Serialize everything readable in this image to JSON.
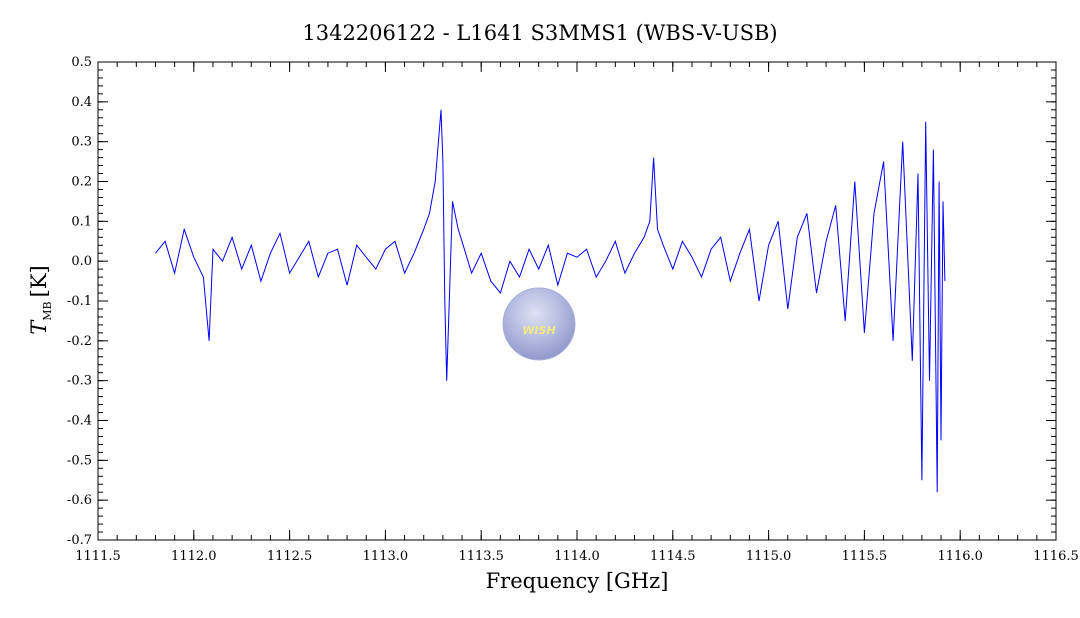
{
  "chart_data": {
    "type": "line",
    "title": "1342206122 - L1641 S3MMS1 (WBS-V-USB)",
    "xlabel": "Frequency [GHz]",
    "ylabel_main": "T",
    "ylabel_sub": "MB",
    "ylabel_unit": "[K]",
    "xlim": [
      1111.5,
      1116.5
    ],
    "ylim": [
      -0.7,
      0.5
    ],
    "x_ticks": [
      1111.5,
      1112.0,
      1112.5,
      1113.0,
      1113.5,
      1114.0,
      1114.5,
      1115.0,
      1115.5,
      1116.0,
      1116.5
    ],
    "x_tick_labels": [
      "1111.5",
      "1112.0",
      "1112.5",
      "1113.0",
      "1113.5",
      "1114.0",
      "1114.5",
      "1115.0",
      "1115.5",
      "1116.0",
      "1116.5"
    ],
    "y_ticks": [
      -0.7,
      -0.6,
      -0.5,
      -0.4,
      -0.3,
      -0.2,
      -0.1,
      0.0,
      0.1,
      0.2,
      0.3,
      0.4,
      0.5
    ],
    "y_tick_labels": [
      "-0.7",
      "-0.6",
      "-0.5",
      "-0.4",
      "-0.3",
      "-0.2",
      "-0.1",
      "0.0",
      "0.1",
      "0.2",
      "0.3",
      "0.4",
      "0.5"
    ],
    "line_color": "#0000ff",
    "grid": false,
    "logo_text": "WISH",
    "series": [
      {
        "x": [
          1111.8,
          1111.85,
          1111.9,
          1111.95,
          1112.0,
          1112.05,
          1112.08,
          1112.1,
          1112.15,
          1112.2,
          1112.25,
          1112.3,
          1112.35,
          1112.4,
          1112.45,
          1112.5,
          1112.55,
          1112.6,
          1112.65,
          1112.7,
          1112.75,
          1112.8,
          1112.85,
          1112.9,
          1112.95,
          1113.0,
          1113.05,
          1113.1,
          1113.15,
          1113.2,
          1113.23,
          1113.26,
          1113.29,
          1113.3,
          1113.31,
          1113.32,
          1113.35,
          1113.38,
          1113.4,
          1113.45,
          1113.5,
          1113.55,
          1113.6,
          1113.65,
          1113.7,
          1113.75,
          1113.8,
          1113.85,
          1113.9,
          1113.95,
          1114.0,
          1114.05,
          1114.1,
          1114.15,
          1114.2,
          1114.25,
          1114.3,
          1114.35,
          1114.38,
          1114.4,
          1114.42,
          1114.45,
          1114.5,
          1114.55,
          1114.6,
          1114.65,
          1114.7,
          1114.75,
          1114.8,
          1114.85,
          1114.9,
          1114.95,
          1115.0,
          1115.05,
          1115.1,
          1115.15,
          1115.2,
          1115.25,
          1115.3,
          1115.35,
          1115.4,
          1115.45,
          1115.5,
          1115.55,
          1115.6,
          1115.65,
          1115.7,
          1115.75,
          1115.78,
          1115.8,
          1115.82,
          1115.84,
          1115.86,
          1115.88,
          1115.89,
          1115.9,
          1115.91,
          1115.92
        ],
        "y": [
          0.02,
          0.05,
          -0.03,
          0.08,
          0.01,
          -0.04,
          -0.2,
          0.03,
          0.0,
          0.06,
          -0.02,
          0.04,
          -0.05,
          0.02,
          0.07,
          -0.03,
          0.01,
          0.05,
          -0.04,
          0.02,
          0.03,
          -0.06,
          0.04,
          0.01,
          -0.02,
          0.03,
          0.05,
          -0.03,
          0.02,
          0.08,
          0.12,
          0.2,
          0.38,
          0.25,
          -0.1,
          -0.3,
          0.15,
          0.08,
          0.05,
          -0.03,
          0.02,
          -0.05,
          -0.08,
          0.0,
          -0.04,
          0.03,
          -0.02,
          0.04,
          -0.06,
          0.02,
          0.01,
          0.03,
          -0.04,
          0.0,
          0.05,
          -0.03,
          0.02,
          0.06,
          0.1,
          0.26,
          0.08,
          0.04,
          -0.02,
          0.05,
          0.01,
          -0.04,
          0.03,
          0.06,
          -0.05,
          0.02,
          0.08,
          -0.1,
          0.04,
          0.1,
          -0.12,
          0.06,
          0.12,
          -0.08,
          0.05,
          0.14,
          -0.15,
          0.2,
          -0.18,
          0.12,
          0.25,
          -0.2,
          0.3,
          -0.25,
          0.22,
          -0.55,
          0.35,
          -0.3,
          0.28,
          -0.58,
          0.2,
          -0.45,
          0.15,
          -0.05
        ]
      }
    ]
  }
}
